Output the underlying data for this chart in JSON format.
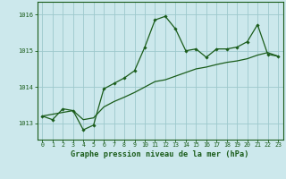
{
  "title": "Graphe pression niveau de la mer (hPa)",
  "background_color": "#cce8ec",
  "line_color": "#1a5c1a",
  "grid_color": "#9dc8cc",
  "x_ticks": [
    0,
    1,
    2,
    3,
    4,
    5,
    6,
    7,
    8,
    9,
    10,
    11,
    12,
    13,
    14,
    15,
    16,
    17,
    18,
    19,
    20,
    21,
    22,
    23
  ],
  "y_ticks": [
    1013,
    1014,
    1015,
    1016
  ],
  "ylim": [
    1012.55,
    1016.35
  ],
  "xlim": [
    -0.5,
    23.5
  ],
  "series1_x": [
    0,
    1,
    2,
    3,
    4,
    5,
    6,
    7,
    8,
    9,
    10,
    11,
    12,
    13,
    14,
    15,
    16,
    17,
    18,
    19,
    20,
    21,
    22,
    23
  ],
  "series1_y": [
    1013.2,
    1013.1,
    1013.4,
    1013.35,
    1012.82,
    1012.95,
    1013.95,
    1014.1,
    1014.25,
    1014.45,
    1015.1,
    1015.85,
    1015.95,
    1015.6,
    1015.0,
    1015.05,
    1014.82,
    1015.05,
    1015.05,
    1015.1,
    1015.25,
    1015.72,
    1014.9,
    1014.85
  ],
  "series2_x": [
    0,
    3,
    4,
    5,
    6,
    7,
    8,
    9,
    10,
    11,
    12,
    13,
    14,
    15,
    16,
    17,
    18,
    19,
    20,
    21,
    22,
    23
  ],
  "series2_y": [
    1013.2,
    1013.35,
    1013.1,
    1013.15,
    1013.45,
    1013.6,
    1013.72,
    1013.85,
    1014.0,
    1014.15,
    1014.2,
    1014.3,
    1014.4,
    1014.5,
    1014.55,
    1014.62,
    1014.68,
    1014.72,
    1014.78,
    1014.88,
    1014.95,
    1014.85
  ]
}
